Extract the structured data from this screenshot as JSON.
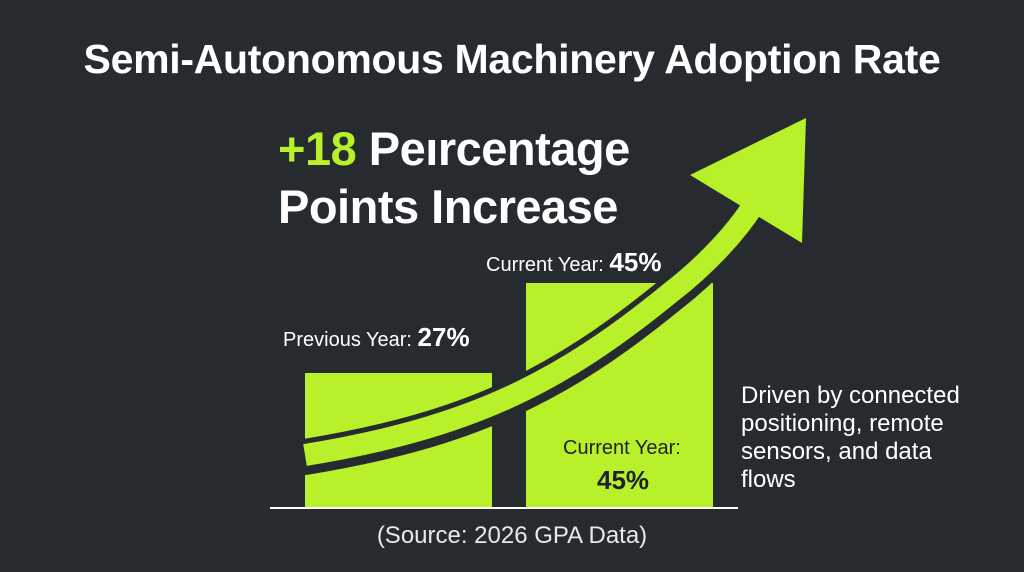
{
  "title": "Semi-Autonomous Machinery Adoption Rate",
  "headline": {
    "accent_text": "+18",
    "line1_rest": " Peırcentage",
    "line2": "Points Increase"
  },
  "labels": {
    "previous_prefix": "Previous Year: ",
    "previous_value": "27%",
    "current_prefix": "Current Year: ",
    "current_value": "45%",
    "inner_current_label": "Current Year:",
    "inner_current_value": "45%"
  },
  "note": "Driven by connected positioning, remote sensors, and data flows",
  "source": "(Source: 2026 GPA Data)",
  "colors": {
    "accent": "#b8f02a",
    "background": "#262b30",
    "text": "#ffffff",
    "baseline": "#ffffff"
  },
  "chart_data": {
    "type": "bar",
    "categories": [
      "Previous Year",
      "Current Year"
    ],
    "values": [
      27,
      45
    ],
    "unit": "%",
    "title": "Semi-Autonomous Machinery Adoption Rate",
    "annotation": "+18 Peırcentage Points Increase",
    "ylim": [
      0,
      45
    ],
    "grid": false,
    "legend": "none",
    "trend_arrow": "rising"
  }
}
